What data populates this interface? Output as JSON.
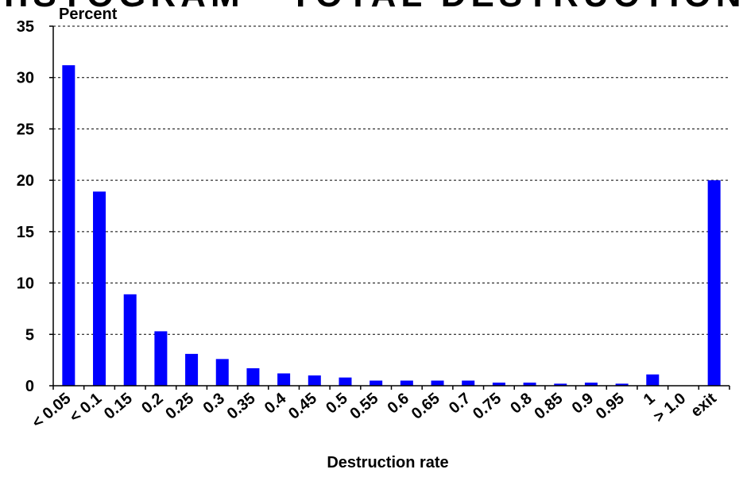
{
  "banner_text": "HISTOGRAM - TOTAL DESTRUCTION",
  "chart_data": {
    "type": "bar",
    "ylabel": "Percent",
    "xlabel": "Destruction rate",
    "ylim": [
      0,
      35
    ],
    "yticks": [
      0,
      5,
      10,
      15,
      20,
      25,
      30,
      35
    ],
    "grid": true,
    "bar_color": "#0000ff",
    "categories": [
      "< 0.05",
      "< 0.1",
      "0.15",
      "0.2",
      "0.25",
      "0.3",
      "0.35",
      "0.4",
      "0.45",
      "0.5",
      "0.55",
      "0.6",
      "0.65",
      "0.7",
      "0.75",
      "0.8",
      "0.85",
      "0.9",
      "0.95",
      "1",
      "> 1.0",
      "exit"
    ],
    "values": [
      31.2,
      18.9,
      8.9,
      5.3,
      3.1,
      2.6,
      1.7,
      1.2,
      1.0,
      0.8,
      0.5,
      0.5,
      0.5,
      0.5,
      0.3,
      0.3,
      0.2,
      0.3,
      0.2,
      1.1,
      0,
      20.0
    ]
  }
}
